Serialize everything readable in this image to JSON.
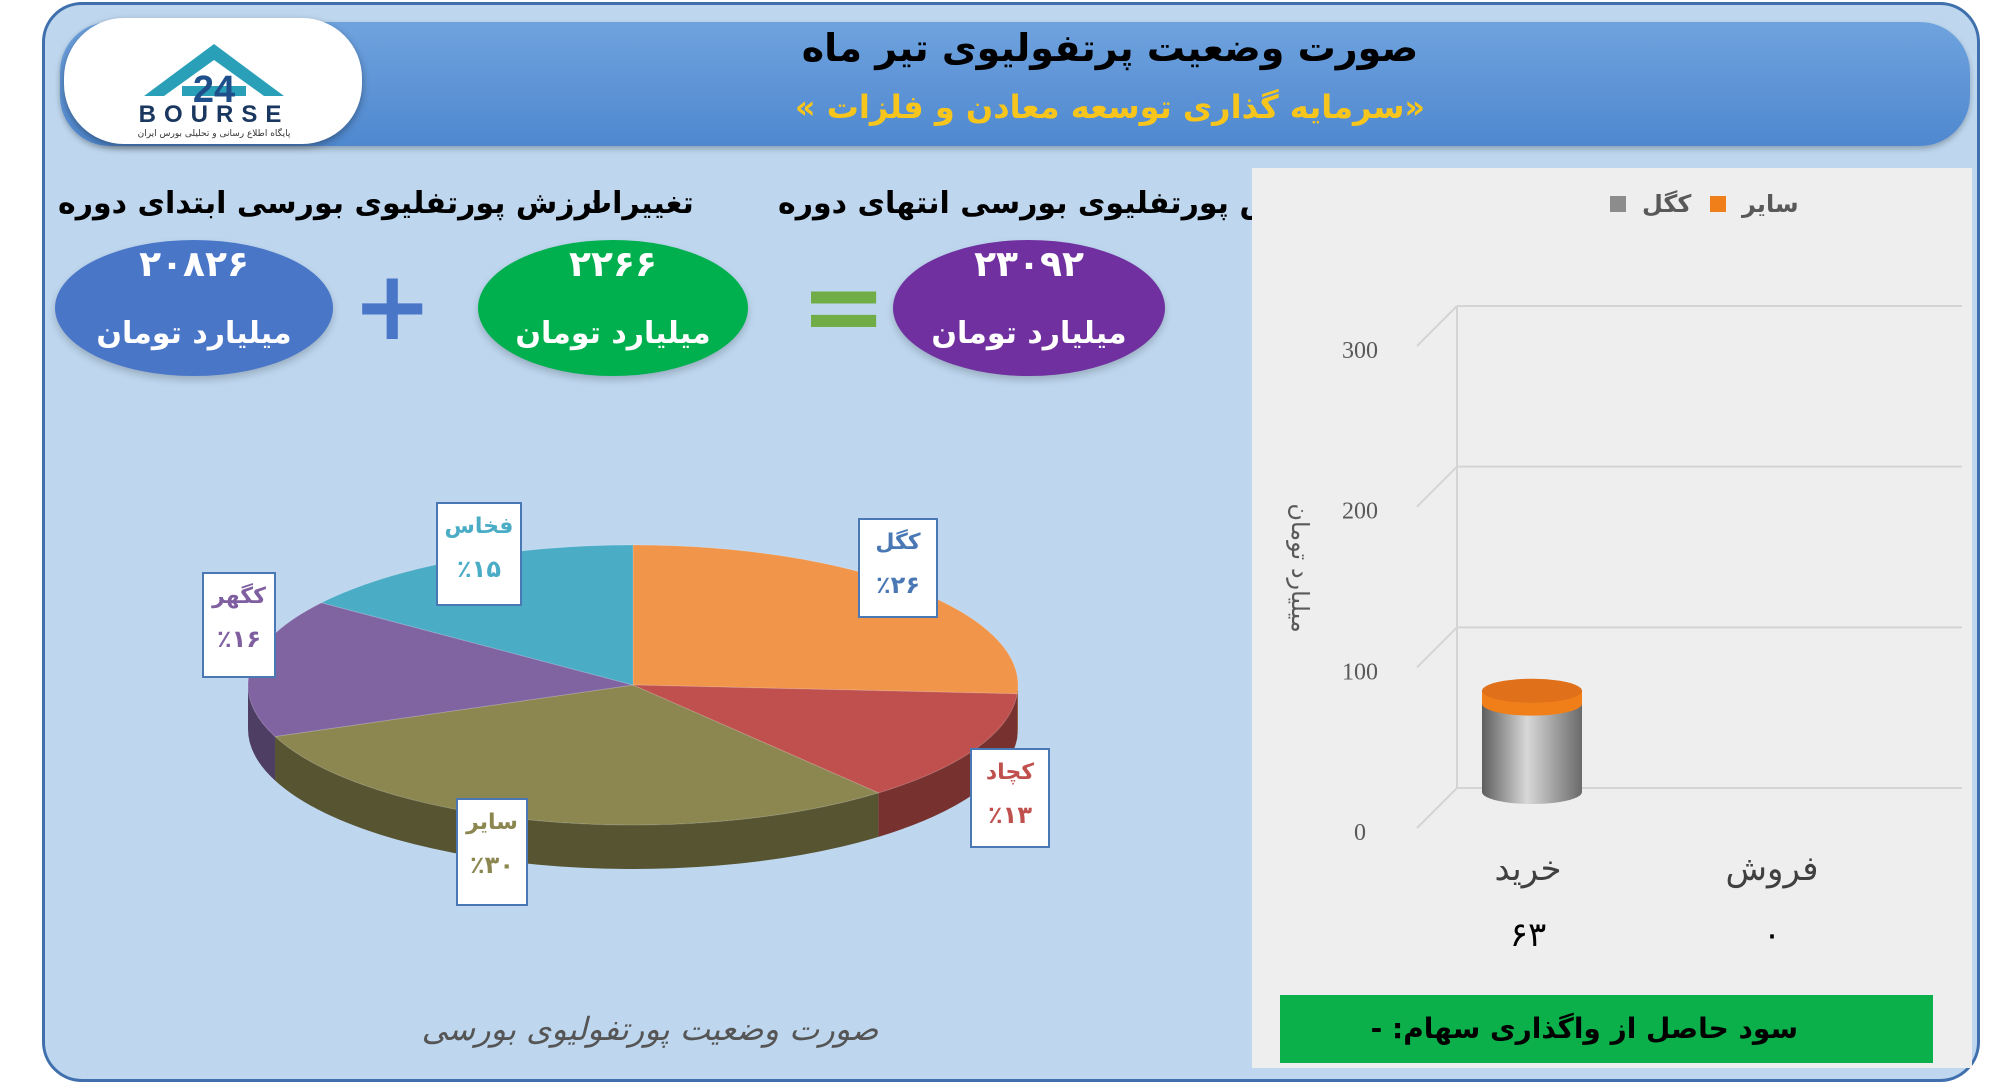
{
  "header": {
    "title": "صورت وضعیت پرتفولیوی تیر ماه",
    "subtitle": "«سرمایه گذاری توسعه معادن و فلزات »"
  },
  "logo": {
    "number": "24",
    "word": "BOURSE",
    "tagline": "پایگاه اطلاع رسانی و تحلیلی بورس ایران"
  },
  "summary": {
    "start": {
      "label": "ارزش پورتفلیوی بورسی ابتدای دوره",
      "value": "۲۰۸۲۶",
      "unit": "میلیارد تومان"
    },
    "change": {
      "label": "تغییرات",
      "value": "۲۲۶۶",
      "unit": "میلیارد تومان"
    },
    "end": {
      "label": "ارزش پورتفلیوی بورسی انتهای دوره",
      "value": "۲۳۰۹۲",
      "unit": "میلیارد تومان"
    },
    "plus": "+",
    "equals": "="
  },
  "pie_caption": "صورت وضعیت پورتفولیوی بورسی",
  "profit_text": "سود حاصل از واگذاری سهام: -",
  "colors": {
    "frame": "#bed7ef",
    "header": "#5b8fd4",
    "subtitle": "#f7c51b",
    "start_ellipse": "#4a76c8",
    "change_ellipse": "#00b04f",
    "end_ellipse": "#7030a0",
    "plus": "#4a76c8",
    "equals": "#70ad47",
    "profit_bar": "#0bb04b"
  },
  "chart_data": [
    {
      "type": "pie",
      "title": "صورت وضعیت پورتفولیوی بورسی",
      "slices": [
        {
          "name": "کگل",
          "label": "٪۲۶",
          "value": 26,
          "color": "#f0954a",
          "text_color": "#4a78b5"
        },
        {
          "name": "کچاد",
          "label": "٪۱۳",
          "value": 13,
          "color": "#c0504d",
          "text_color": "#c0504d"
        },
        {
          "name": "سایر",
          "label": "٪۳۰",
          "value": 30,
          "color": "#8c8750",
          "text_color": "#8c8750"
        },
        {
          "name": "کگهر",
          "label": "٪۱۶",
          "value": 16,
          "color": "#8064a2",
          "text_color": "#7f5fa0"
        },
        {
          "name": "فخاس",
          "label": "٪۱۵",
          "value": 15,
          "color": "#4bacc6",
          "text_color": "#4bacc6"
        }
      ]
    },
    {
      "type": "bar",
      "ylabel": "میلیارد تومان",
      "ylim": [
        0,
        300
      ],
      "yticks": [
        "0",
        "100",
        "200",
        "300"
      ],
      "categories": [
        "خرید",
        "فروش"
      ],
      "totals": [
        "۶۳",
        "۰"
      ],
      "legend_position": "top",
      "series": [
        {
          "name": "کگل",
          "values": [
            55,
            0
          ],
          "color": "#8c8c8c"
        },
        {
          "name": "سایر",
          "values": [
            8,
            0
          ],
          "color": "#f07f1a"
        }
      ]
    }
  ]
}
